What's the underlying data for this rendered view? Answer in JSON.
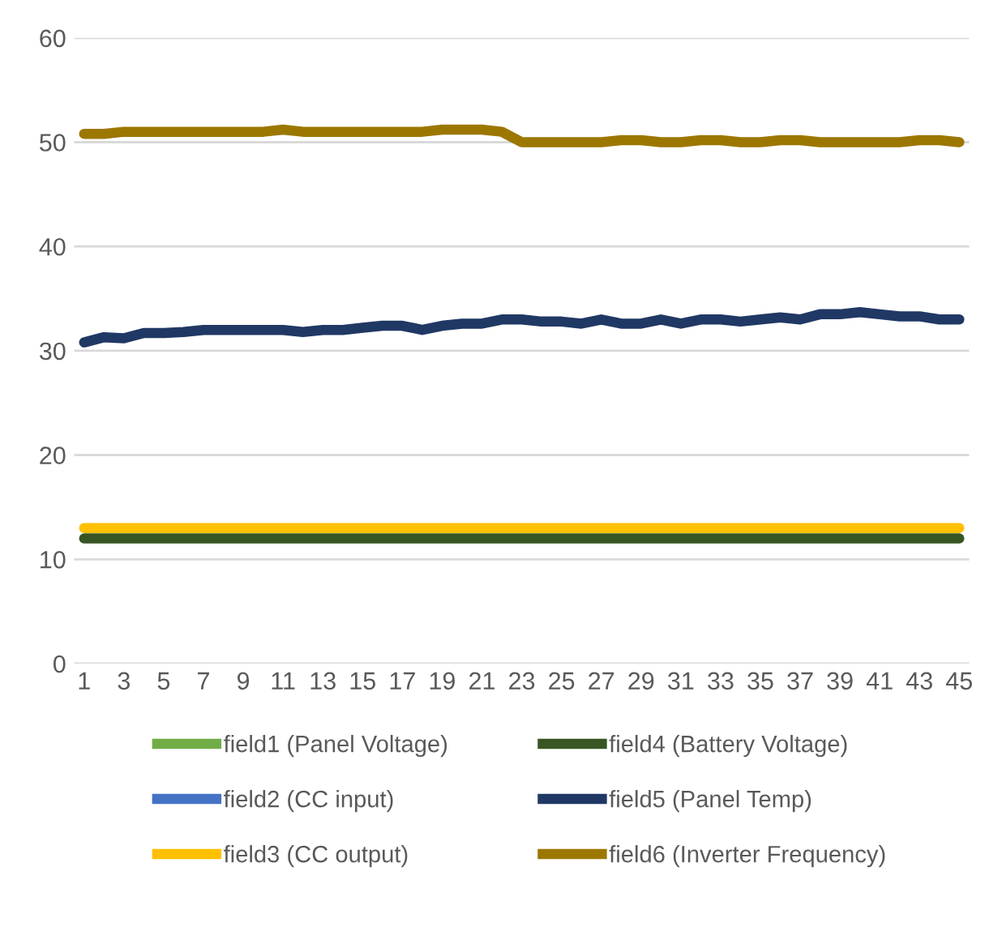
{
  "chart_data": {
    "type": "line",
    "categories": [
      "1",
      null,
      "3",
      null,
      "5",
      null,
      "7",
      null,
      "9",
      null,
      "11",
      null,
      "13",
      null,
      "15",
      null,
      "17",
      null,
      "19",
      null,
      "21",
      null,
      "23",
      null,
      "25",
      null,
      "27",
      null,
      "29",
      null,
      "31",
      null,
      "33",
      null,
      "35",
      null,
      "37",
      null,
      "39",
      null,
      "41",
      null,
      "43",
      null,
      "45"
    ],
    "series": [
      {
        "name": "field1 (Panel Voltage)",
        "color": "#70ad47",
        "values": [
          null,
          null,
          null,
          null,
          null,
          null,
          null,
          null,
          null,
          null,
          null,
          null,
          null,
          null,
          null,
          null,
          null,
          null,
          null,
          null,
          null,
          null,
          null,
          null,
          null,
          null,
          null,
          null,
          null,
          null,
          null,
          null,
          null,
          null,
          null,
          null,
          null,
          null,
          null,
          null,
          null,
          null,
          null,
          null,
          null
        ]
      },
      {
        "name": "field2 (CC input)",
        "color": "#4472c4",
        "values": [
          null,
          null,
          null,
          null,
          null,
          null,
          null,
          null,
          null,
          null,
          null,
          null,
          null,
          null,
          null,
          null,
          null,
          null,
          null,
          null,
          null,
          null,
          null,
          null,
          null,
          null,
          null,
          null,
          null,
          null,
          null,
          null,
          null,
          null,
          null,
          null,
          null,
          null,
          null,
          null,
          null,
          null,
          null,
          null,
          null
        ]
      },
      {
        "name": "field3 (CC output)",
        "color": "#ffc000",
        "values": [
          13,
          13,
          13,
          13,
          13,
          13,
          13,
          13,
          13,
          13,
          13,
          13,
          13,
          13,
          13,
          13,
          13,
          13,
          13,
          13,
          13,
          13,
          13,
          13,
          13,
          13,
          13,
          13,
          13,
          13,
          13,
          13,
          13,
          13,
          13,
          13,
          13,
          13,
          13,
          13,
          13,
          13,
          13,
          13,
          13
        ]
      },
      {
        "name": "field4 (Battery Voltage)",
        "color": "#375623",
        "values": [
          12,
          12,
          12,
          12,
          12,
          12,
          12,
          12,
          12,
          12,
          12,
          12,
          12,
          12,
          12,
          12,
          12,
          12,
          12,
          12,
          12,
          12,
          12,
          12,
          12,
          12,
          12,
          12,
          12,
          12,
          12,
          12,
          12,
          12,
          12,
          12,
          12,
          12,
          12,
          12,
          12,
          12,
          12,
          12,
          12
        ]
      },
      {
        "name": "field5 (Panel Temp)",
        "color": "#203864",
        "values": [
          30.8,
          31.3,
          31.2,
          31.7,
          31.7,
          31.8,
          32,
          32,
          32,
          32,
          32,
          31.8,
          32,
          32,
          32.2,
          32.4,
          32.4,
          32,
          32.4,
          32.6,
          32.6,
          33,
          33,
          32.8,
          32.8,
          32.6,
          33,
          32.6,
          32.6,
          33,
          32.6,
          33,
          33,
          32.8,
          33,
          33.2,
          33,
          33.5,
          33.5,
          33.7,
          33.5,
          33.3,
          33.3,
          33,
          33
        ]
      },
      {
        "name": "field6 (Inverter Frequency)",
        "color": "#9c7700",
        "values": [
          50.8,
          50.8,
          51,
          51,
          51,
          51,
          51,
          51,
          51,
          51,
          51.2,
          51,
          51,
          51,
          51,
          51,
          51,
          51,
          51.2,
          51.2,
          51.2,
          51,
          50,
          50,
          50,
          50,
          50,
          50.2,
          50.2,
          50,
          50,
          50.2,
          50.2,
          50,
          50,
          50.2,
          50.2,
          50,
          50,
          50,
          50,
          50,
          50.2,
          50.2,
          50
        ]
      }
    ],
    "ylim": [
      0,
      60
    ],
    "yticks": [
      0,
      10,
      20,
      30,
      40,
      50,
      60
    ],
    "grid": "y",
    "legend": "bottom",
    "marker": "none",
    "line_style": "solid"
  }
}
